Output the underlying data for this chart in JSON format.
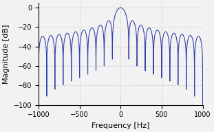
{
  "title": "",
  "xlabel": "Frequency [Hz]",
  "ylabel": "Magnitude [dB]",
  "xlim": [
    -1000,
    1000
  ],
  "ylim": [
    -100,
    5
  ],
  "yticks": [
    0,
    -20,
    -40,
    -60,
    -80,
    -100
  ],
  "xticks": [
    -1000,
    -500,
    0,
    500,
    1000
  ],
  "line_color": "#3344aa",
  "line_color_light": "#8899cc",
  "grid_color": "#bbbbbb",
  "bg_color": "#f2f2f2",
  "figsize": [
    3.11,
    1.92
  ],
  "dpi": 100,
  "window_duration": 0.01,
  "fs": 2000,
  "num_points": 4000
}
